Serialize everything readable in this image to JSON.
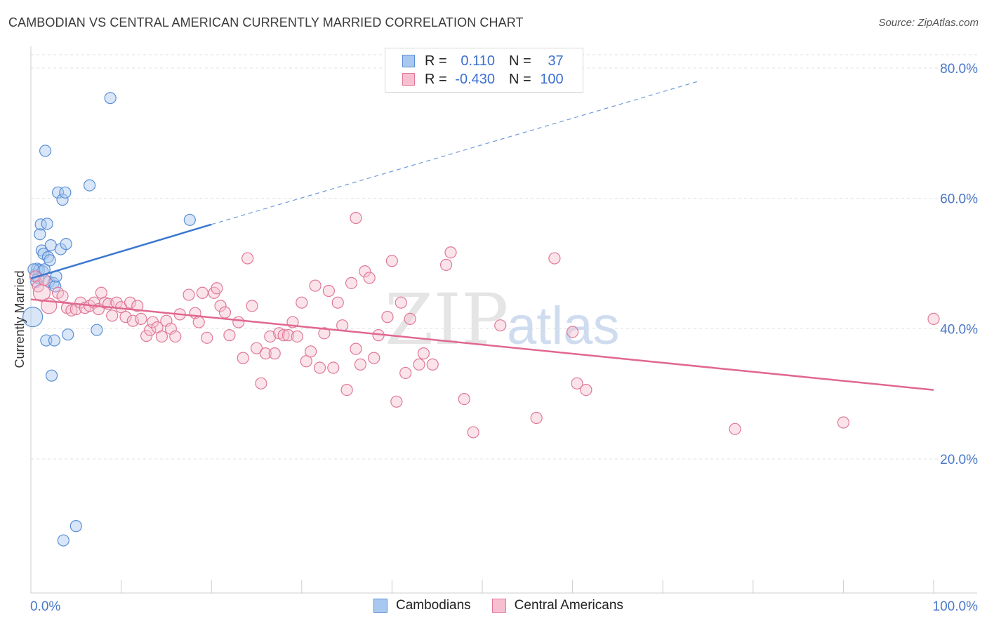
{
  "title": "CAMBODIAN VS CENTRAL AMERICAN CURRENTLY MARRIED CORRELATION CHART",
  "source": "Source: ZipAtlas.com",
  "watermark": {
    "zip": "ZIP",
    "atlas": "atlas"
  },
  "legend": {
    "rows": [
      {
        "r_label": "R =",
        "r_value": "0.110",
        "n_label": "N =",
        "n_value": "37",
        "color": "#a8c8f0",
        "border": "#5b8fd6"
      },
      {
        "r_label": "R =",
        "r_value": "-0.430",
        "n_label": "N =",
        "n_value": "100",
        "color": "#f7c0d0",
        "border": "#e07898"
      }
    ]
  },
  "bottom_legend": [
    {
      "label": "Cambodians",
      "color": "#a8c8f0",
      "border": "#5b8fd6"
    },
    {
      "label": "Central Americans",
      "color": "#f7c0d0",
      "border": "#e07898"
    }
  ],
  "chart_data": {
    "type": "scatter",
    "title": "CAMBODIAN VS CENTRAL AMERICAN CURRENTLY MARRIED CORRELATION CHART",
    "xlabel": "",
    "ylabel": "Currently Married",
    "xlim": [
      0,
      100
    ],
    "ylim": [
      0,
      80
    ],
    "x_tick_labels": [
      "0.0%",
      "100.0%"
    ],
    "y_ticks": [
      20,
      40,
      60,
      80
    ],
    "y_tick_labels": [
      "20.0%",
      "40.0%",
      "60.0%",
      "80.0%"
    ],
    "grid": true,
    "legend_position": "top-center",
    "series": [
      {
        "name": "Cambodians",
        "color": "#5b8fd6",
        "fill": "#a8c8f0",
        "trend": {
          "x": [
            0,
            20
          ],
          "y": [
            47.7,
            56.0
          ],
          "extended_to": [
            74,
            78
          ]
        },
        "points": [
          [
            0.2,
            41.8
          ],
          [
            0.5,
            48.3
          ],
          [
            0.6,
            47.2
          ],
          [
            0.7,
            49.2
          ],
          [
            0.8,
            47.8
          ],
          [
            0.9,
            49.0
          ],
          [
            1.0,
            54.5
          ],
          [
            1.1,
            56.0
          ],
          [
            1.2,
            52.0
          ],
          [
            1.3,
            48.8
          ],
          [
            1.4,
            51.5
          ],
          [
            1.5,
            49.1
          ],
          [
            1.6,
            67.3
          ],
          [
            1.7,
            38.2
          ],
          [
            1.8,
            56.1
          ],
          [
            1.9,
            51.0
          ],
          [
            2.0,
            47.2
          ],
          [
            2.1,
            50.5
          ],
          [
            2.2,
            52.8
          ],
          [
            2.3,
            32.8
          ],
          [
            2.5,
            47.0
          ],
          [
            2.6,
            38.2
          ],
          [
            2.7,
            46.5
          ],
          [
            2.8,
            48.0
          ],
          [
            3.0,
            60.9
          ],
          [
            3.3,
            52.2
          ],
          [
            3.5,
            59.8
          ],
          [
            3.6,
            7.5
          ],
          [
            3.8,
            60.9
          ],
          [
            3.9,
            53.0
          ],
          [
            4.1,
            39.1
          ],
          [
            5.0,
            9.7
          ],
          [
            6.5,
            62.0
          ],
          [
            7.3,
            39.8
          ],
          [
            8.8,
            75.4
          ],
          [
            17.6,
            56.7
          ],
          [
            0.3,
            49.1
          ]
        ]
      },
      {
        "name": "Central Americans",
        "color": "#e07898",
        "fill": "#f7c0d0",
        "trend": {
          "x": [
            0,
            100
          ],
          "y": [
            44.5,
            30.6
          ]
        },
        "points": [
          [
            0.5,
            48.0
          ],
          [
            0.8,
            46.5
          ],
          [
            1.2,
            45.5
          ],
          [
            1.5,
            47.5
          ],
          [
            2.0,
            43.5
          ],
          [
            3.0,
            45.5
          ],
          [
            3.5,
            45.0
          ],
          [
            4.0,
            43.2
          ],
          [
            4.5,
            42.8
          ],
          [
            5.0,
            43.0
          ],
          [
            5.5,
            44.0
          ],
          [
            6.0,
            43.2
          ],
          [
            6.5,
            43.5
          ],
          [
            7.0,
            44.0
          ],
          [
            7.5,
            43.0
          ],
          [
            7.8,
            45.5
          ],
          [
            8.2,
            44.0
          ],
          [
            8.6,
            43.8
          ],
          [
            9.0,
            42.0
          ],
          [
            9.5,
            44.0
          ],
          [
            10.0,
            43.3
          ],
          [
            10.5,
            41.8
          ],
          [
            11.0,
            44.0
          ],
          [
            11.3,
            41.2
          ],
          [
            11.8,
            43.5
          ],
          [
            12.2,
            41.5
          ],
          [
            12.8,
            38.9
          ],
          [
            13.2,
            39.8
          ],
          [
            13.5,
            41.0
          ],
          [
            14.0,
            40.2
          ],
          [
            14.5,
            38.8
          ],
          [
            15.0,
            41.2
          ],
          [
            15.5,
            40.0
          ],
          [
            16.0,
            38.8
          ],
          [
            16.5,
            42.2
          ],
          [
            17.5,
            45.2
          ],
          [
            18.2,
            42.4
          ],
          [
            18.6,
            41.0
          ],
          [
            19.0,
            45.5
          ],
          [
            19.5,
            38.6
          ],
          [
            20.3,
            45.5
          ],
          [
            20.6,
            46.2
          ],
          [
            21.0,
            43.5
          ],
          [
            21.5,
            42.5
          ],
          [
            22.0,
            39.0
          ],
          [
            23.0,
            41.0
          ],
          [
            23.5,
            35.5
          ],
          [
            24.0,
            50.8
          ],
          [
            24.5,
            43.5
          ],
          [
            25.0,
            37.0
          ],
          [
            25.5,
            31.6
          ],
          [
            26.0,
            36.2
          ],
          [
            26.5,
            38.8
          ],
          [
            27.0,
            36.2
          ],
          [
            27.5,
            39.3
          ],
          [
            28.0,
            39.0
          ],
          [
            28.5,
            39.0
          ],
          [
            29.0,
            41.0
          ],
          [
            29.5,
            38.8
          ],
          [
            30.0,
            44.0
          ],
          [
            30.5,
            35.0
          ],
          [
            31.0,
            36.5
          ],
          [
            31.5,
            46.6
          ],
          [
            32.0,
            34.0
          ],
          [
            32.5,
            39.3
          ],
          [
            33.0,
            45.8
          ],
          [
            33.5,
            34.0
          ],
          [
            34.0,
            44.0
          ],
          [
            34.5,
            40.5
          ],
          [
            35.0,
            30.6
          ],
          [
            35.5,
            47.0
          ],
          [
            36.0,
            36.9
          ],
          [
            36.5,
            34.5
          ],
          [
            37.0,
            48.8
          ],
          [
            37.5,
            47.8
          ],
          [
            38.0,
            35.5
          ],
          [
            38.5,
            39.0
          ],
          [
            39.5,
            41.8
          ],
          [
            40.0,
            50.4
          ],
          [
            40.5,
            28.8
          ],
          [
            41.0,
            44.0
          ],
          [
            41.5,
            33.2
          ],
          [
            42.0,
            41.5
          ],
          [
            43.0,
            34.5
          ],
          [
            43.5,
            36.2
          ],
          [
            44.5,
            34.5
          ],
          [
            46.0,
            49.8
          ],
          [
            46.5,
            51.7
          ],
          [
            48.0,
            29.2
          ],
          [
            49.0,
            24.1
          ],
          [
            52.0,
            40.5
          ],
          [
            56.0,
            26.3
          ],
          [
            58.0,
            50.8
          ],
          [
            60.0,
            39.5
          ],
          [
            60.5,
            31.6
          ],
          [
            61.5,
            30.6
          ],
          [
            78.0,
            24.6
          ],
          [
            90.0,
            25.6
          ],
          [
            100.0,
            41.5
          ],
          [
            36.0,
            57.0
          ]
        ]
      }
    ]
  }
}
